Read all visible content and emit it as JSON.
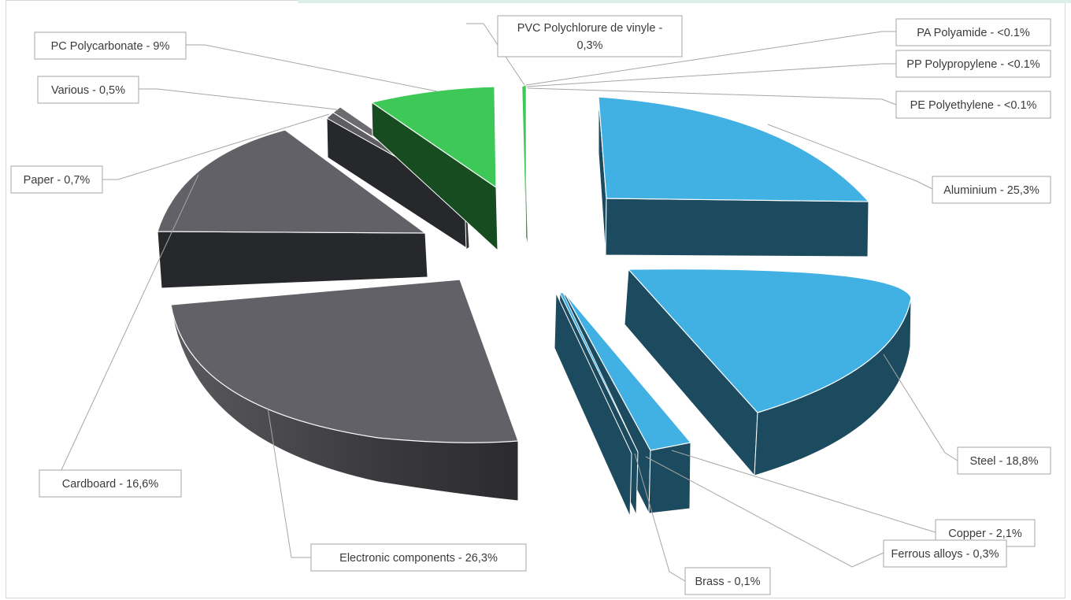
{
  "chart_data": {
    "type": "pie",
    "variant": "exploded-3d",
    "title": "",
    "slices": [
      {
        "label": "Aluminium - 25,3%",
        "value": 25.3,
        "top_color": "#41b0e3",
        "side_color": "#1c4a5e"
      },
      {
        "label": "Steel - 18,8%",
        "value": 18.8,
        "top_color": "#41b0e3",
        "side_color": "#1c4a5e"
      },
      {
        "label": "Copper - 2,1%",
        "value": 2.1,
        "top_color": "#41b0e3",
        "side_color": "#1c4a5e"
      },
      {
        "label": "Ferrous alloys - 0,3%",
        "value": 0.3,
        "top_color": "#41b0e3",
        "side_color": "#1c4a5e"
      },
      {
        "label": "Brass - 0,1%",
        "value": 0.1,
        "top_color": "#41b0e3",
        "side_color": "#1c4a5e"
      },
      {
        "label": "Electronic components - 26,3%",
        "value": 26.3,
        "top_color": "#616167",
        "side_color": "#333336"
      },
      {
        "label": "Cardboard - 16,6%",
        "value": 16.6,
        "top_color": "#616167",
        "side_color": "#27282b"
      },
      {
        "label": "Paper - 0,7%",
        "value": 0.7,
        "top_color": "#616167",
        "side_color": "#27282b"
      },
      {
        "label": "Various - 0,5%",
        "value": 0.5,
        "top_color": "#616167",
        "side_color": "#27282b"
      },
      {
        "label": "PC Polycarbonate - 9%",
        "value": 9.0,
        "top_color": "#3ec857",
        "side_color": "#174c20"
      },
      {
        "label": "PVC Polychlorure de vinyle - 0,3%",
        "value": 0.3,
        "top_color": "#3ec857",
        "side_color": "#174c20"
      },
      {
        "label": "PA Polyamide - <0.1%",
        "value": 0.05,
        "top_color": "#3ec857",
        "side_color": "#174c20"
      },
      {
        "label": "PP Polypropylene - <0.1%",
        "value": 0.05,
        "top_color": "#3ec857",
        "side_color": "#174c20"
      },
      {
        "label": "PE Polyethylene - <0.1%",
        "value": 0.05,
        "top_color": "#3ec857",
        "side_color": "#174c20"
      }
    ]
  }
}
